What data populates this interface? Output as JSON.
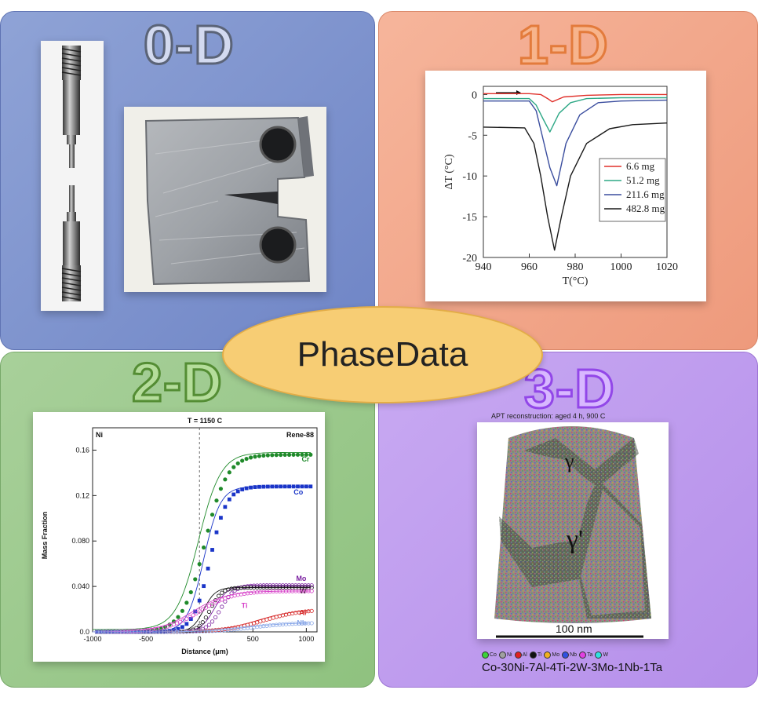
{
  "center_label": "PhaseData",
  "quadrants": {
    "q0": {
      "title": "0-D"
    },
    "q1": {
      "title": "1-D"
    },
    "q2": {
      "title": "2-D"
    },
    "q3": {
      "title": "3-D"
    }
  },
  "colors": {
    "q0_bg": "#7f94cf",
    "q1_bg": "#f2a88b",
    "q2_bg": "#9bc98b",
    "q3_bg": "#bd9bee",
    "ellipse": "#f7cd74"
  },
  "chart_data": [
    {
      "type": "line",
      "xlabel": "T(°C)",
      "ylabel": "ΔT (°C)",
      "xlim": [
        940,
        1020
      ],
      "ylim": [
        -20,
        1
      ],
      "xticks": [
        940,
        960,
        980,
        1000,
        1020
      ],
      "yticks": [
        0,
        -5,
        -10,
        -15,
        -20
      ],
      "legend": "right",
      "series": [
        {
          "name": "6.6 mg",
          "color": "#e0302a",
          "x": [
            940,
            960,
            965,
            968,
            970,
            975,
            985,
            1000,
            1020
          ],
          "y": [
            0.1,
            0.1,
            0.0,
            -0.5,
            -0.9,
            -0.3,
            -0.1,
            0.0,
            0.0
          ]
        },
        {
          "name": "51.2 mg",
          "color": "#2ea886",
          "x": [
            940,
            960,
            963,
            966,
            969,
            973,
            978,
            985,
            1000,
            1020
          ],
          "y": [
            -0.5,
            -0.5,
            -1.3,
            -3.0,
            -4.6,
            -2.3,
            -1.0,
            -0.5,
            -0.4,
            -0.4
          ]
        },
        {
          "name": "211.6 mg",
          "color": "#3a4d9e",
          "x": [
            940,
            960,
            963,
            966,
            969,
            972,
            976,
            982,
            990,
            1000,
            1020
          ],
          "y": [
            -0.8,
            -0.8,
            -2.0,
            -5.5,
            -9.0,
            -11.2,
            -6.0,
            -2.5,
            -1.0,
            -0.8,
            -0.7
          ]
        },
        {
          "name": "482.8 mg",
          "color": "#1a1a1a",
          "x": [
            940,
            958,
            962,
            965,
            968,
            971,
            974,
            978,
            985,
            995,
            1005,
            1020
          ],
          "y": [
            -4.0,
            -4.1,
            -6.0,
            -10.0,
            -15.0,
            -19.1,
            -15.0,
            -10.0,
            -6.0,
            -4.2,
            -3.7,
            -3.5
          ]
        }
      ]
    },
    {
      "type": "scatter",
      "title": "T = 1150 C",
      "left_label": "Ni",
      "right_label": "Rene-88",
      "xlabel": "Distance (μm)",
      "ylabel": "Mass Fraction",
      "xlim": [
        -1000,
        1100
      ],
      "ylim": [
        0,
        0.17
      ],
      "xticks": [
        -1000,
        -500,
        0,
        500,
        1000
      ],
      "yticks": [
        0,
        0.04,
        0.08,
        0.12,
        0.16
      ],
      "ytick_labels": [
        "0.0",
        "0.040",
        "0.080",
        "0.12",
        "0.16"
      ],
      "series": [
        {
          "name": "Cr",
          "color": "#1f8a2a",
          "center": 50,
          "width": 230,
          "max": 0.156
        },
        {
          "name": "Co",
          "color": "#1a35c8",
          "center": 100,
          "width": 170,
          "max": 0.128
        },
        {
          "name": "Mo",
          "color": "#7a1fa0",
          "center": 200,
          "width": 140,
          "max": 0.041
        },
        {
          "name": "W",
          "color": "#111111",
          "center": 100,
          "width": 120,
          "max": 0.039
        },
        {
          "name": "Ti",
          "color": "#d640c8",
          "center": 0,
          "width": 350,
          "max": 0.036
        },
        {
          "name": "Al",
          "color": "#d62a2a",
          "center": 600,
          "width": 400,
          "max": 0.02
        },
        {
          "name": "Nb",
          "color": "#8aa8e8",
          "center": 500,
          "width": 400,
          "max": 0.008
        }
      ]
    }
  ],
  "apt": {
    "title": "APT reconstruction: aged 4 h, 900 C",
    "gamma": "γ",
    "gamma_prime": "γ'",
    "scale": "100 nm",
    "legend": [
      {
        "label": "Co",
        "color": "#3ad13a"
      },
      {
        "label": "Ni",
        "color": "#a0a0a0"
      },
      {
        "label": "Al",
        "color": "#e02020"
      },
      {
        "label": "Ti",
        "color": "#111111"
      },
      {
        "label": "Mo",
        "color": "#f0b020"
      },
      {
        "label": "Nb",
        "color": "#3050e0"
      },
      {
        "label": "Ta",
        "color": "#e040e0"
      },
      {
        "label": "W",
        "color": "#30e0e0"
      }
    ],
    "composition": "Co-30Ni-7Al-4Ti-2W-3Mo-1Nb-1Ta"
  }
}
